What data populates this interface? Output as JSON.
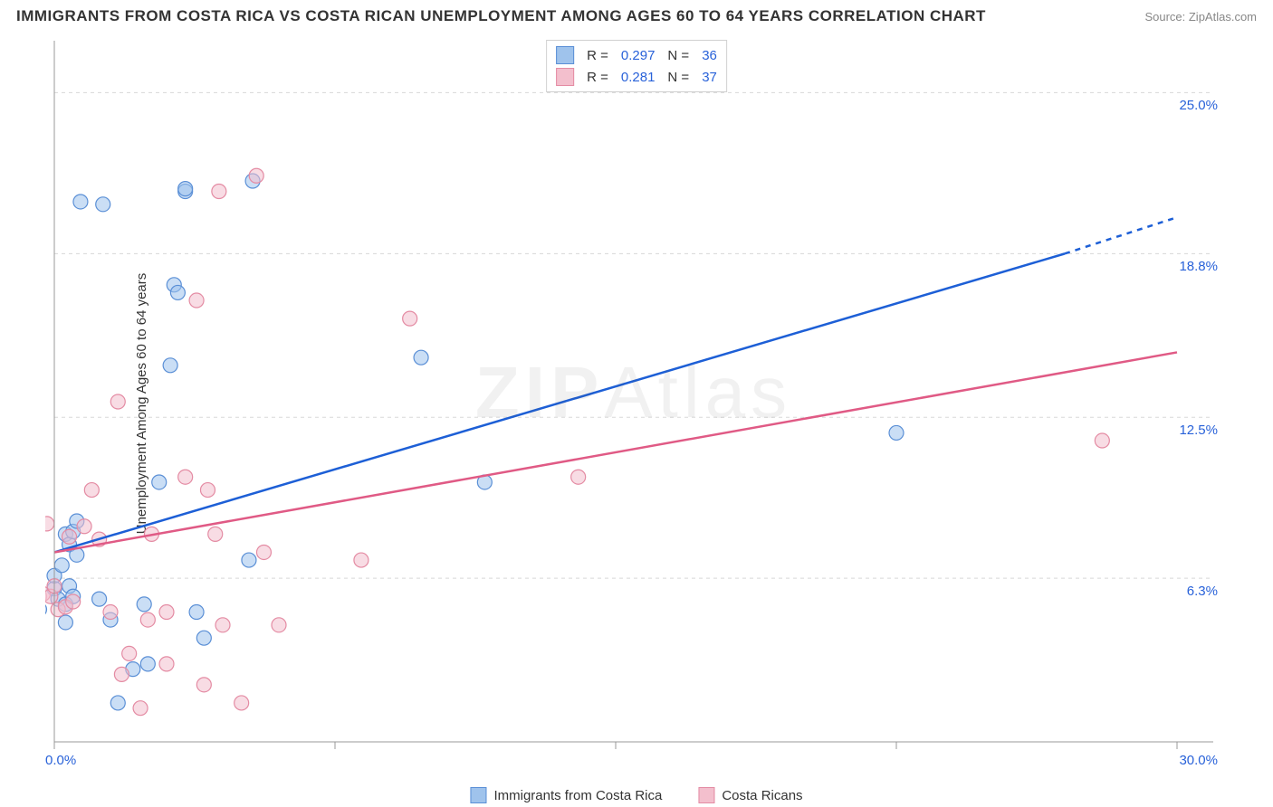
{
  "title": "IMMIGRANTS FROM COSTA RICA VS COSTA RICAN UNEMPLOYMENT AMONG AGES 60 TO 64 YEARS CORRELATION CHART",
  "source": "Source: ZipAtlas.com",
  "watermark": "ZIPAtlas",
  "y_axis_label": "Unemployment Among Ages 60 to 64 years",
  "chart": {
    "type": "scatter",
    "background_color": "#ffffff",
    "grid_color": "#d8d8d8",
    "grid_dash": "4,4",
    "axis_line_color": "#999999",
    "xlim": [
      0,
      30
    ],
    "ylim": [
      0,
      27
    ],
    "x_ticks": [
      {
        "v": 0.0,
        "label": "0.0%"
      },
      {
        "v": 30.0,
        "label": "30.0%"
      }
    ],
    "y_ticks": [
      {
        "v": 6.3,
        "label": "6.3%"
      },
      {
        "v": 12.5,
        "label": "12.5%"
      },
      {
        "v": 18.8,
        "label": "18.8%"
      },
      {
        "v": 25.0,
        "label": "25.0%"
      }
    ],
    "x_grid_at": [
      0,
      7.5,
      15,
      22.5,
      30
    ],
    "y_grid_at": [
      6.3,
      12.5,
      18.8,
      25.0
    ],
    "tick_font_size": 15,
    "tick_color": "#2962d9",
    "marker_radius": 8,
    "marker_opacity": 0.55,
    "series": [
      {
        "name": "Immigrants from Costa Rica",
        "stroke": "#5a8fd6",
        "fill": "#9fc3ec",
        "R": 0.297,
        "N": 36,
        "trend": {
          "x1": 0,
          "y1": 7.3,
          "x2": 27.0,
          "y2": 18.8,
          "dash_x2": 30.0,
          "dash_y2": 20.2,
          "color": "#1d5fd6",
          "width": 2.5
        },
        "points": [
          [
            -0.5,
            5.6
          ],
          [
            -0.4,
            5.1
          ],
          [
            0.0,
            5.9
          ],
          [
            0.0,
            6.4
          ],
          [
            0.1,
            5.5
          ],
          [
            0.2,
            6.8
          ],
          [
            0.3,
            5.3
          ],
          [
            0.3,
            8.0
          ],
          [
            0.3,
            4.6
          ],
          [
            0.4,
            7.6
          ],
          [
            0.4,
            6.0
          ],
          [
            0.5,
            5.6
          ],
          [
            0.5,
            8.1
          ],
          [
            0.6,
            7.2
          ],
          [
            0.6,
            8.5
          ],
          [
            0.7,
            20.8
          ],
          [
            1.2,
            5.5
          ],
          [
            1.3,
            20.7
          ],
          [
            1.5,
            4.7
          ],
          [
            1.7,
            1.5
          ],
          [
            2.1,
            2.8
          ],
          [
            2.4,
            5.3
          ],
          [
            2.5,
            3.0
          ],
          [
            2.8,
            10.0
          ],
          [
            3.1,
            14.5
          ],
          [
            3.2,
            17.6
          ],
          [
            3.3,
            17.3
          ],
          [
            3.5,
            21.2
          ],
          [
            3.5,
            21.3
          ],
          [
            3.8,
            5.0
          ],
          [
            4.0,
            4.0
          ],
          [
            5.2,
            7.0
          ],
          [
            5.3,
            21.6
          ],
          [
            9.8,
            14.8
          ],
          [
            11.5,
            10.0
          ],
          [
            22.5,
            11.9
          ]
        ]
      },
      {
        "name": "Costa Ricans",
        "stroke": "#e48ba3",
        "fill": "#f3bfcd",
        "R": 0.281,
        "N": 37,
        "trend": {
          "x1": 0,
          "y1": 7.3,
          "x2": 30.0,
          "y2": 15.0,
          "color": "#e05a85",
          "width": 2.5
        },
        "points": [
          [
            -0.6,
            5.5
          ],
          [
            -0.4,
            5.6
          ],
          [
            -0.3,
            5.7
          ],
          [
            -0.2,
            8.4
          ],
          [
            -0.1,
            5.6
          ],
          [
            0.0,
            6.0
          ],
          [
            0.1,
            5.1
          ],
          [
            0.3,
            5.2
          ],
          [
            0.4,
            7.9
          ],
          [
            0.5,
            5.4
          ],
          [
            0.8,
            8.3
          ],
          [
            1.0,
            9.7
          ],
          [
            1.2,
            7.8
          ],
          [
            1.5,
            5.0
          ],
          [
            1.7,
            13.1
          ],
          [
            1.8,
            2.6
          ],
          [
            2.0,
            3.4
          ],
          [
            2.3,
            1.3
          ],
          [
            2.5,
            4.7
          ],
          [
            2.6,
            8.0
          ],
          [
            3.0,
            5.0
          ],
          [
            3.0,
            3.0
          ],
          [
            3.5,
            10.2
          ],
          [
            3.8,
            17.0
          ],
          [
            4.0,
            2.2
          ],
          [
            4.1,
            9.7
          ],
          [
            4.3,
            8.0
          ],
          [
            4.4,
            21.2
          ],
          [
            4.5,
            4.5
          ],
          [
            5.0,
            1.5
          ],
          [
            5.4,
            21.8
          ],
          [
            5.6,
            7.3
          ],
          [
            6.0,
            4.5
          ],
          [
            8.2,
            7.0
          ],
          [
            9.5,
            16.3
          ],
          [
            14.0,
            10.2
          ],
          [
            28.0,
            11.6
          ]
        ]
      }
    ]
  },
  "legend_top": {
    "rows": [
      {
        "swatch": 0,
        "R_label": "R =",
        "N_label": "N ="
      },
      {
        "swatch": 1,
        "R_label": "R =",
        "N_label": "N ="
      }
    ]
  },
  "legend_bottom": {
    "items": [
      {
        "swatch": 0
      },
      {
        "swatch": 1
      }
    ]
  }
}
